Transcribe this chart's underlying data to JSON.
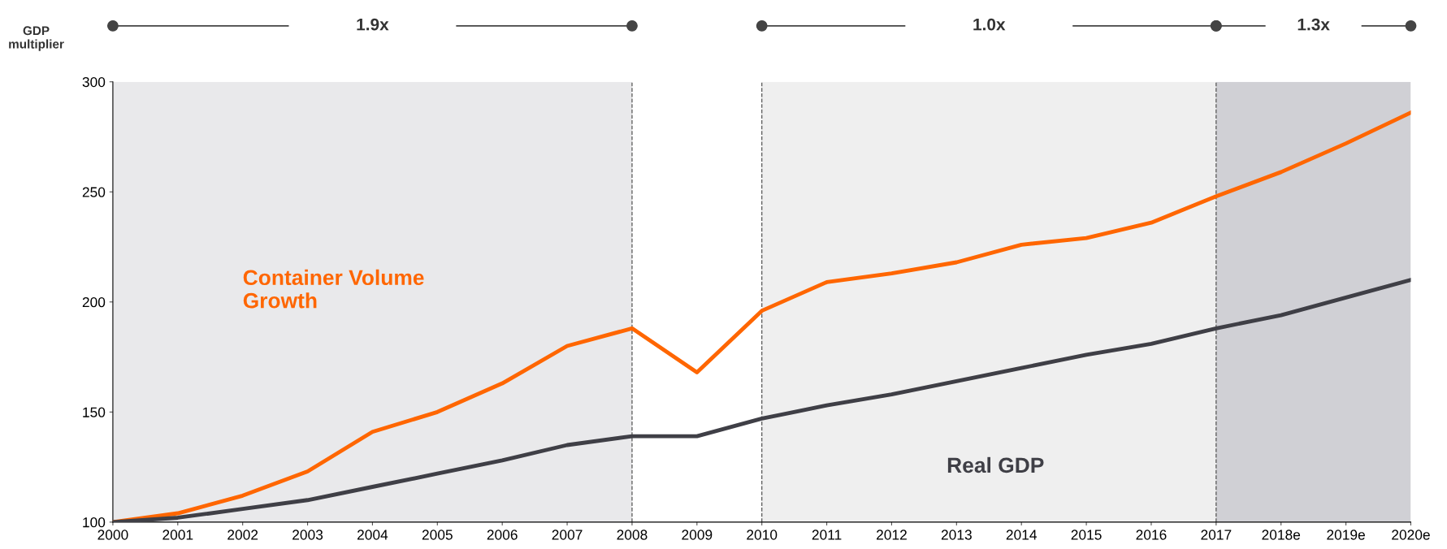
{
  "chart_data": {
    "type": "line",
    "x": [
      2000,
      2001,
      2002,
      2003,
      2004,
      2005,
      2006,
      2007,
      2008,
      2009,
      2010,
      2011,
      2012,
      2013,
      2014,
      2015,
      2016,
      2017,
      2018,
      2019,
      2020
    ],
    "series": [
      {
        "name": "Container Volume\nGrowth",
        "color": "#ff6600",
        "values": [
          100,
          104,
          112,
          123,
          141,
          150,
          163,
          180,
          188,
          168,
          196,
          209,
          213,
          218,
          226,
          229,
          236,
          248,
          259,
          272,
          286
        ]
      },
      {
        "name": "Real GDP",
        "color": "#3f3f46",
        "values": [
          100,
          102,
          106,
          110,
          116,
          122,
          128,
          135,
          139,
          139,
          147,
          153,
          158,
          164,
          170,
          176,
          181,
          188,
          194,
          202,
          210
        ]
      }
    ],
    "xlim": [
      2000,
      2020
    ],
    "xticks": [
      2000,
      2001,
      2002,
      2003,
      2004,
      2005,
      2006,
      2007,
      2008,
      2009,
      2010,
      2011,
      2012,
      2013,
      2014,
      2015,
      2016,
      2017,
      {
        "value": 2018,
        "label": "2018e"
      },
      {
        "value": 2019,
        "label": "2019e"
      },
      {
        "value": 2020,
        "label": "2020e"
      }
    ],
    "ylim": [
      100,
      300
    ],
    "yticks": [
      100,
      150,
      200,
      250,
      300
    ],
    "bands": [
      {
        "axis": "x",
        "from": 2000,
        "to": 2008,
        "color": "#e9e9eb"
      },
      {
        "axis": "x",
        "from": 2010,
        "to": 2017,
        "color": "#efefef"
      },
      {
        "axis": "x",
        "from": 2017,
        "to": 2020,
        "color": "#d0d0d5"
      }
    ],
    "ref_lines": [
      {
        "axis": "x",
        "value": 2008,
        "line_style": "dashed"
      },
      {
        "axis": "x",
        "value": 2010,
        "line_style": "dashed"
      },
      {
        "axis": "x",
        "value": 2017,
        "line_style": "dashed"
      }
    ],
    "annotations": [
      "GDP\nmultiplier",
      "1.9x",
      "1.0x",
      "1.3x"
    ],
    "grid": false,
    "legend": false,
    "marker": "none",
    "line_style": "solid"
  }
}
